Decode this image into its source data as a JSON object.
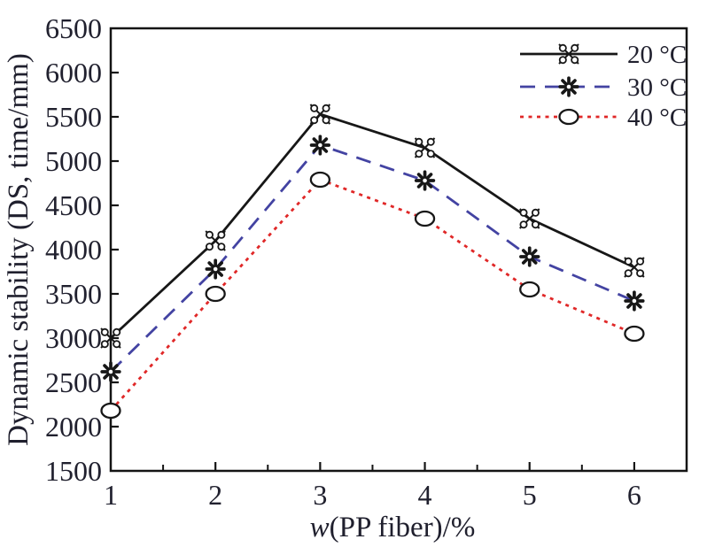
{
  "figure": {
    "background": "#ffffff",
    "text_color": "#20202e",
    "frame_color": "#141414"
  },
  "chart_data": {
    "type": "line",
    "title": "",
    "xlabel_full": "w(PP fiber)/%",
    "xlabel_italic": "w",
    "xlabel_rest": "(PP fiber)/%",
    "ylabel": "Dynamic stability (DS, time/mm)",
    "x": [
      1,
      2,
      3,
      4,
      5,
      6
    ],
    "xlim": [
      1,
      6.5
    ],
    "ylim": [
      1500,
      6500
    ],
    "yticks": [
      1500,
      2000,
      2500,
      3000,
      3500,
      4000,
      4500,
      5000,
      5500,
      6000,
      6500
    ],
    "xticks_major": [
      1,
      2,
      3,
      4,
      5,
      6
    ],
    "xticks_minor": [
      1.5,
      2.5,
      3.5,
      4.5,
      5.5
    ],
    "grid": false,
    "legend_position": "top-right-inside",
    "series": [
      {
        "name": "20 °C",
        "color": "#171717",
        "marker_color": "#171717",
        "line_style": "solid",
        "marker": "asterisk-circles",
        "values": [
          3000,
          4100,
          5530,
          5150,
          4350,
          3800
        ]
      },
      {
        "name": "30 °C",
        "color": "#4343a2",
        "marker_color": "#171717",
        "line_style": "dashed",
        "marker": "snowflake-asterisk",
        "values": [
          2620,
          3780,
          5180,
          4780,
          3920,
          3420
        ]
      },
      {
        "name": "40 °C",
        "color": "#e02828",
        "marker_color": "#171717",
        "line_style": "dotted",
        "marker": "open-ellipse",
        "values": [
          2180,
          3500,
          4790,
          4350,
          3550,
          3050
        ]
      }
    ]
  }
}
